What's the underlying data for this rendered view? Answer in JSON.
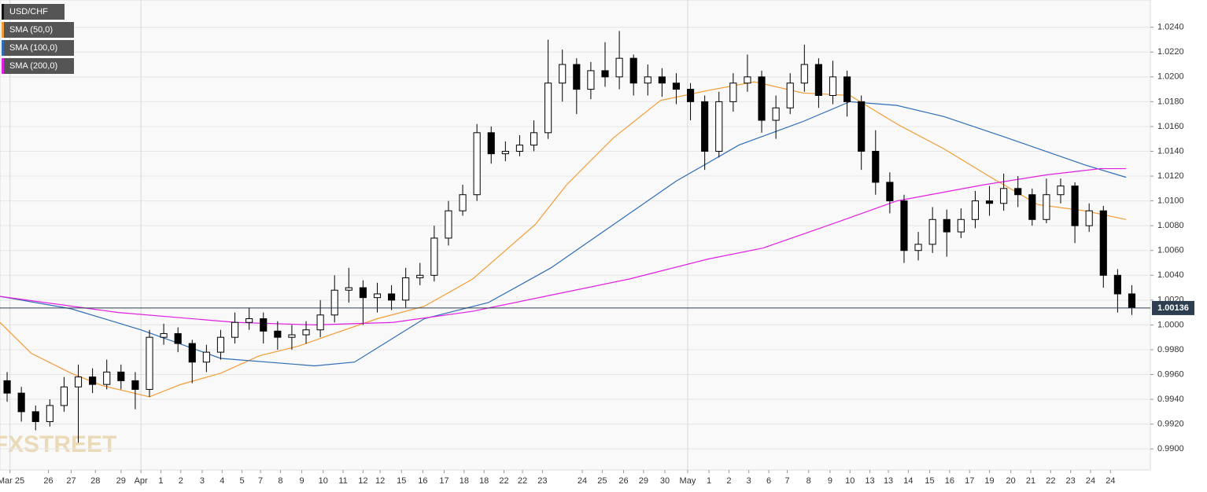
{
  "chart_data": {
    "type": "candlestick",
    "watermark": "FXSTREET",
    "last_price": 1.00136,
    "grid": true,
    "xlim": [
      -0.5,
      80.3
    ],
    "ylim": [
      0.9883,
      1.0262
    ],
    "yticks": [
      {
        "value": 0.99,
        "label": "0.9900"
      },
      {
        "value": 0.992,
        "label": "0.9920"
      },
      {
        "value": 0.994,
        "label": "0.9940"
      },
      {
        "value": 0.996,
        "label": "0.9960"
      },
      {
        "value": 0.998,
        "label": "0.9980"
      },
      {
        "value": 1.0,
        "label": "1.0000"
      },
      {
        "value": 1.002,
        "label": "1.0020"
      },
      {
        "value": 1.004,
        "label": "1.0040"
      },
      {
        "value": 1.006,
        "label": "1.0060"
      },
      {
        "value": 1.008,
        "label": "1.0080"
      },
      {
        "value": 1.01,
        "label": "1.0100"
      },
      {
        "value": 1.012,
        "label": "1.0120"
      },
      {
        "value": 1.014,
        "label": "1.0140"
      },
      {
        "value": 1.016,
        "label": "1.0160"
      },
      {
        "value": 1.018,
        "label": "1.0180"
      },
      {
        "value": 1.02,
        "label": "1.0200"
      },
      {
        "value": 1.022,
        "label": "1.0220"
      },
      {
        "value": 1.024,
        "label": "1.0240"
      }
    ],
    "xticks": [
      {
        "value": 0.2,
        "label": "Mar 25"
      },
      {
        "value": 2.9,
        "label": "26"
      },
      {
        "value": 4.5,
        "label": "27"
      },
      {
        "value": 6.2,
        "label": "28"
      },
      {
        "value": 8,
        "label": "29"
      },
      {
        "value": 9.4,
        "label": "Apr"
      },
      {
        "value": 10.8,
        "label": "1"
      },
      {
        "value": 12.2,
        "label": "2"
      },
      {
        "value": 13.7,
        "label": "3"
      },
      {
        "value": 15.1,
        "label": "4"
      },
      {
        "value": 16.5,
        "label": "5"
      },
      {
        "value": 17.8,
        "label": "7"
      },
      {
        "value": 19.2,
        "label": "8"
      },
      {
        "value": 20.7,
        "label": "9"
      },
      {
        "value": 22.2,
        "label": "10"
      },
      {
        "value": 23.6,
        "label": "11"
      },
      {
        "value": 25,
        "label": "12"
      },
      {
        "value": 26.2,
        "label": "12"
      },
      {
        "value": 27.7,
        "label": "15"
      },
      {
        "value": 29.2,
        "label": "16"
      },
      {
        "value": 30.7,
        "label": "17"
      },
      {
        "value": 32.1,
        "label": "18"
      },
      {
        "value": 33.5,
        "label": "18"
      },
      {
        "value": 34.9,
        "label": "22"
      },
      {
        "value": 36.2,
        "label": "22"
      },
      {
        "value": 37.6,
        "label": "23"
      },
      {
        "value": 40.4,
        "label": "24"
      },
      {
        "value": 41.8,
        "label": "25"
      },
      {
        "value": 43.3,
        "label": "26"
      },
      {
        "value": 44.7,
        "label": "29"
      },
      {
        "value": 46.2,
        "label": "30"
      },
      {
        "value": 47.8,
        "label": "May"
      },
      {
        "value": 49.3,
        "label": "1"
      },
      {
        "value": 50.7,
        "label": "2"
      },
      {
        "value": 52.1,
        "label": "3"
      },
      {
        "value": 53.5,
        "label": "6"
      },
      {
        "value": 54.8,
        "label": "7"
      },
      {
        "value": 56.3,
        "label": "8"
      },
      {
        "value": 57.8,
        "label": "9"
      },
      {
        "value": 59.2,
        "label": "10"
      },
      {
        "value": 60.6,
        "label": "13"
      },
      {
        "value": 61.9,
        "label": "13"
      },
      {
        "value": 63.3,
        "label": "14"
      },
      {
        "value": 64.8,
        "label": "15"
      },
      {
        "value": 66.2,
        "label": "16"
      },
      {
        "value": 67.6,
        "label": "17"
      },
      {
        "value": 69,
        "label": "19"
      },
      {
        "value": 70.5,
        "label": "20"
      },
      {
        "value": 71.9,
        "label": "21"
      },
      {
        "value": 73.3,
        "label": "22"
      },
      {
        "value": 74.7,
        "label": "23"
      },
      {
        "value": 76.1,
        "label": "24"
      },
      {
        "value": 77.5,
        "label": "24"
      }
    ],
    "series": [
      {
        "name": "USD/CHF",
        "color": "#000000",
        "open": [
          0.9955,
          0.9945,
          0.993,
          0.9922,
          0.9935,
          0.995,
          0.9958,
          0.9952,
          0.9962,
          0.9955,
          0.9948,
          0.999,
          0.9993,
          0.9985,
          0.997,
          0.9978,
          0.999,
          1.0002,
          1.0005,
          0.9995,
          0.999,
          0.9992,
          0.9996,
          1.0008,
          1.0028,
          1.003,
          1.0022,
          1.0025,
          1.002,
          1.0038,
          1.004,
          1.007,
          1.0092,
          1.0105,
          1.0155,
          1.0138,
          1.014,
          1.0145,
          1.0155,
          1.0195,
          1.021,
          1.019,
          1.0205,
          1.02,
          1.0215,
          1.0195,
          1.02,
          1.0195,
          1.019,
          1.018,
          1.014,
          1.018,
          1.0195,
          1.02,
          1.0165,
          1.0175,
          1.0195,
          1.021,
          1.0185,
          1.02,
          1.018,
          1.014,
          1.0115,
          1.01,
          1.006,
          1.0065,
          1.0085,
          1.0075,
          1.0085,
          1.01,
          1.0098,
          1.011,
          1.0105,
          1.0085,
          1.0105,
          1.0112,
          1.008,
          1.0092,
          1.004,
          1.0025
        ],
        "high": [
          0.9962,
          0.995,
          0.9935,
          0.994,
          0.9958,
          0.9968,
          0.9965,
          0.9972,
          0.9968,
          0.9962,
          0.9996,
          1.0001,
          0.9998,
          0.9988,
          0.9984,
          0.9996,
          1.001,
          1.0014,
          1.001,
          1.0003,
          1.0,
          1.0003,
          1.002,
          1.004,
          1.0046,
          1.0036,
          1.0034,
          1.0032,
          1.0046,
          1.005,
          1.008,
          1.01,
          1.0113,
          1.0162,
          1.016,
          1.0148,
          1.0153,
          1.0165,
          1.023,
          1.0222,
          1.0215,
          1.0212,
          1.0228,
          1.0237,
          1.0218,
          1.021,
          1.0207,
          1.0203,
          1.0195,
          1.0185,
          1.0188,
          1.0203,
          1.0218,
          1.0205,
          1.0185,
          1.0203,
          1.0226,
          1.0215,
          1.0213,
          1.0205,
          1.0185,
          1.0157,
          1.0123,
          1.0105,
          1.0075,
          1.0095,
          1.0093,
          1.0094,
          1.0108,
          1.0112,
          1.0122,
          1.012,
          1.011,
          1.0118,
          1.0118,
          1.0115,
          1.0098,
          1.0096,
          1.0045,
          1.0032
        ],
        "low": [
          0.9938,
          0.9922,
          0.9915,
          0.9918,
          0.993,
          0.9905,
          0.9945,
          0.9948,
          0.9948,
          0.9932,
          0.9942,
          0.9984,
          0.9978,
          0.9953,
          0.9962,
          0.9972,
          0.9985,
          0.9996,
          0.9985,
          0.998,
          0.998,
          0.9985,
          0.999,
          1.0002,
          1.0018,
          1.0,
          1.001,
          1.0012,
          1.0014,
          1.0032,
          1.0035,
          1.0064,
          1.0088,
          1.01,
          1.013,
          1.0132,
          1.0136,
          1.014,
          1.015,
          1.018,
          1.017,
          1.0182,
          1.0192,
          1.019,
          1.0185,
          1.0185,
          1.0184,
          1.0178,
          1.0165,
          1.0125,
          1.0135,
          1.0172,
          1.0188,
          1.0155,
          1.015,
          1.017,
          1.0188,
          1.0175,
          1.0178,
          1.0168,
          1.0125,
          1.0105,
          1.009,
          1.005,
          1.0052,
          1.0058,
          1.0055,
          1.007,
          1.0078,
          1.0088,
          1.0092,
          1.0095,
          1.008,
          1.0082,
          1.0098,
          1.0066,
          1.0075,
          1.003,
          1.001,
          1.0008
        ],
        "close": [
          0.9945,
          0.993,
          0.9922,
          0.9935,
          0.995,
          0.9958,
          0.9952,
          0.9962,
          0.9955,
          0.9948,
          0.999,
          0.9993,
          0.9985,
          0.997,
          0.9978,
          0.999,
          1.0002,
          1.0005,
          0.9995,
          0.999,
          0.9992,
          0.9996,
          1.0008,
          1.0028,
          1.003,
          1.0022,
          1.0025,
          1.002,
          1.0038,
          1.004,
          1.007,
          1.0092,
          1.0105,
          1.0155,
          1.0138,
          1.014,
          1.0145,
          1.0155,
          1.0195,
          1.021,
          1.019,
          1.0205,
          1.02,
          1.0215,
          1.0195,
          1.02,
          1.0195,
          1.019,
          1.018,
          1.014,
          1.018,
          1.0195,
          1.02,
          1.0165,
          1.0175,
          1.0195,
          1.021,
          1.0185,
          1.02,
          1.018,
          1.014,
          1.0115,
          1.01,
          1.006,
          1.0065,
          1.0085,
          1.0075,
          1.0085,
          1.01,
          1.0098,
          1.011,
          1.0105,
          1.0085,
          1.0105,
          1.0112,
          1.008,
          1.0092,
          1.004,
          1.0025,
          1.0014
        ]
      }
    ],
    "lines": [
      {
        "name": "SMA (50,0)",
        "color": "#f39c34",
        "x": [
          -0.5,
          1.7,
          4.5,
          6.7,
          10,
          12.2,
          15,
          17.7,
          20.5,
          22.7,
          26,
          29.3,
          32.7,
          34.9,
          37.1,
          39.3,
          42.6,
          45.9,
          49.2,
          52.5,
          55.9,
          59.2,
          62.5,
          65.8,
          69.1,
          72.4,
          75.7,
          78.6
        ],
        "values": [
          1.0002,
          0.9977,
          0.9961,
          0.9951,
          0.9942,
          0.9952,
          0.9961,
          0.9975,
          0.9983,
          0.9992,
          1.0005,
          1.0015,
          1.0037,
          1.0059,
          1.0081,
          1.0113,
          1.0151,
          1.0181,
          1.0189,
          1.0196,
          1.0187,
          1.0185,
          1.0162,
          1.0142,
          1.0119,
          1.0097,
          1.0092,
          1.0085
        ]
      },
      {
        "name": "SMA (100,0)",
        "color": "#2f6db5",
        "x": [
          -0.5,
          4.5,
          9.4,
          15,
          21.6,
          24.4,
          29.3,
          33.8,
          38.2,
          42.6,
          47,
          51.4,
          55.9,
          59.2,
          62.5,
          65.8,
          70.2,
          75.7,
          78.6
        ],
        "values": [
          1.0023,
          1.0013,
          0.9996,
          0.9973,
          0.9967,
          0.997,
          1.0005,
          1.0018,
          1.0046,
          1.0081,
          1.0116,
          1.0145,
          1.0164,
          1.018,
          1.0177,
          1.0168,
          1.0151,
          1.0129,
          1.0119
        ]
      },
      {
        "name": "SMA (200,0)",
        "color": "#e21ee2",
        "x": [
          -0.5,
          7.8,
          16.1,
          21.6,
          27.1,
          32.7,
          38.2,
          43.7,
          49.2,
          53.1,
          58.6,
          62.5,
          68.6,
          73,
          76.8,
          78.6
        ],
        "values": [
          1.0023,
          1.001,
          1.0002,
          1.0,
          1.0002,
          1.0011,
          1.0024,
          1.0037,
          1.0053,
          1.0062,
          1.0084,
          1.01,
          1.0113,
          1.0121,
          1.0126,
          1.0126
        ]
      }
    ]
  }
}
